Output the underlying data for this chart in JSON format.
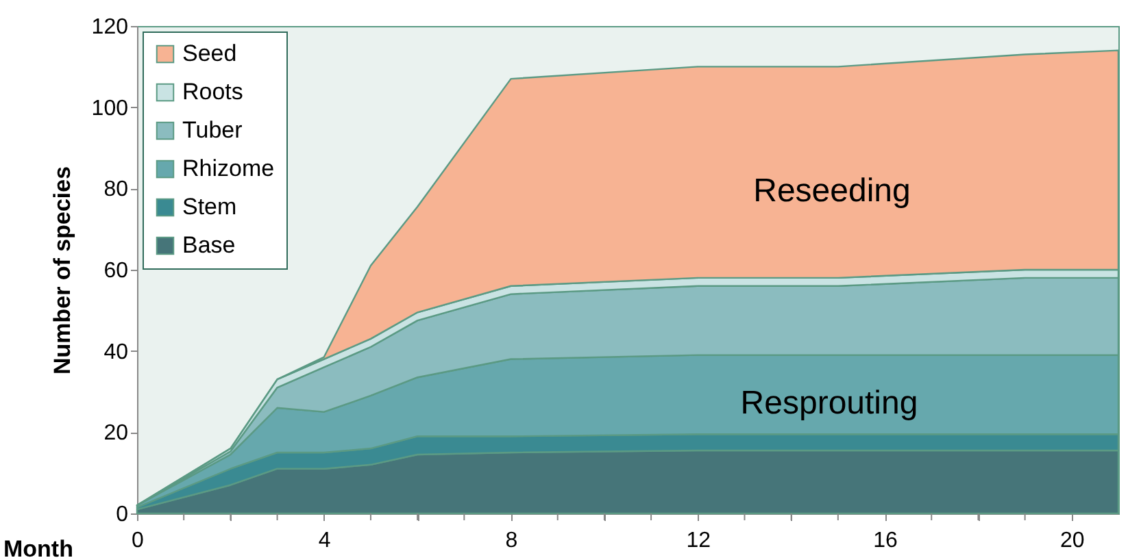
{
  "chart_data": {
    "type": "area",
    "stacked": true,
    "xlabel": "Month",
    "ylabel": "Number of species",
    "x": [
      0,
      2,
      3,
      4,
      5,
      6,
      8,
      12,
      15,
      19,
      21
    ],
    "series": [
      {
        "name": "Base",
        "color": "#467579",
        "values": [
          1,
          7,
          11,
          11,
          12,
          14.5,
          15,
          15.5,
          15.5,
          15.5,
          15.5
        ]
      },
      {
        "name": "Stem",
        "color": "#3a8a92",
        "values": [
          0.5,
          4,
          4,
          4,
          4,
          4.5,
          4,
          4,
          4,
          4,
          4
        ]
      },
      {
        "name": "Rhizome",
        "color": "#66a8ad",
        "values": [
          0.5,
          3.5,
          11,
          10,
          13,
          14.5,
          19,
          19.5,
          19.5,
          19.5,
          19.5
        ]
      },
      {
        "name": "Tuber",
        "color": "#8bbcbf",
        "values": [
          0,
          0.8,
          5,
          11,
          12,
          14,
          16,
          17,
          17,
          19,
          19
        ]
      },
      {
        "name": "Roots",
        "color": "#c9e3e3",
        "values": [
          0,
          0.7,
          2,
          2,
          2,
          2,
          2,
          2,
          2,
          2,
          2
        ]
      },
      {
        "name": "Seed",
        "color": "#f7b393",
        "values": [
          0,
          0,
          0,
          0.5,
          18,
          26,
          51,
          52,
          52,
          53,
          54
        ]
      }
    ],
    "annotations": [
      "Reseeding",
      "Resprouting"
    ],
    "xlim": [
      0,
      21
    ],
    "ylim": [
      0,
      120
    ],
    "xticks": [
      0,
      {
        "value": 1,
        "label": null
      },
      {
        "value": 2,
        "label": null
      },
      {
        "value": 3,
        "label": null
      },
      4,
      {
        "value": 5,
        "label": null
      },
      {
        "value": 6,
        "label": null
      },
      {
        "value": 7,
        "label": null
      },
      8,
      {
        "value": 9,
        "label": null
      },
      {
        "value": 10,
        "label": null
      },
      {
        "value": 11,
        "label": null
      },
      12,
      {
        "value": 13,
        "label": null
      },
      {
        "value": 14,
        "label": null
      },
      {
        "value": 15,
        "label": null
      },
      16,
      {
        "value": 17,
        "label": null
      },
      {
        "value": 18,
        "label": null
      },
      {
        "value": 19,
        "label": null
      },
      20
    ],
    "yticks": [
      0,
      20,
      40,
      60,
      80,
      100,
      120
    ],
    "legend": "top left",
    "grid": false
  }
}
